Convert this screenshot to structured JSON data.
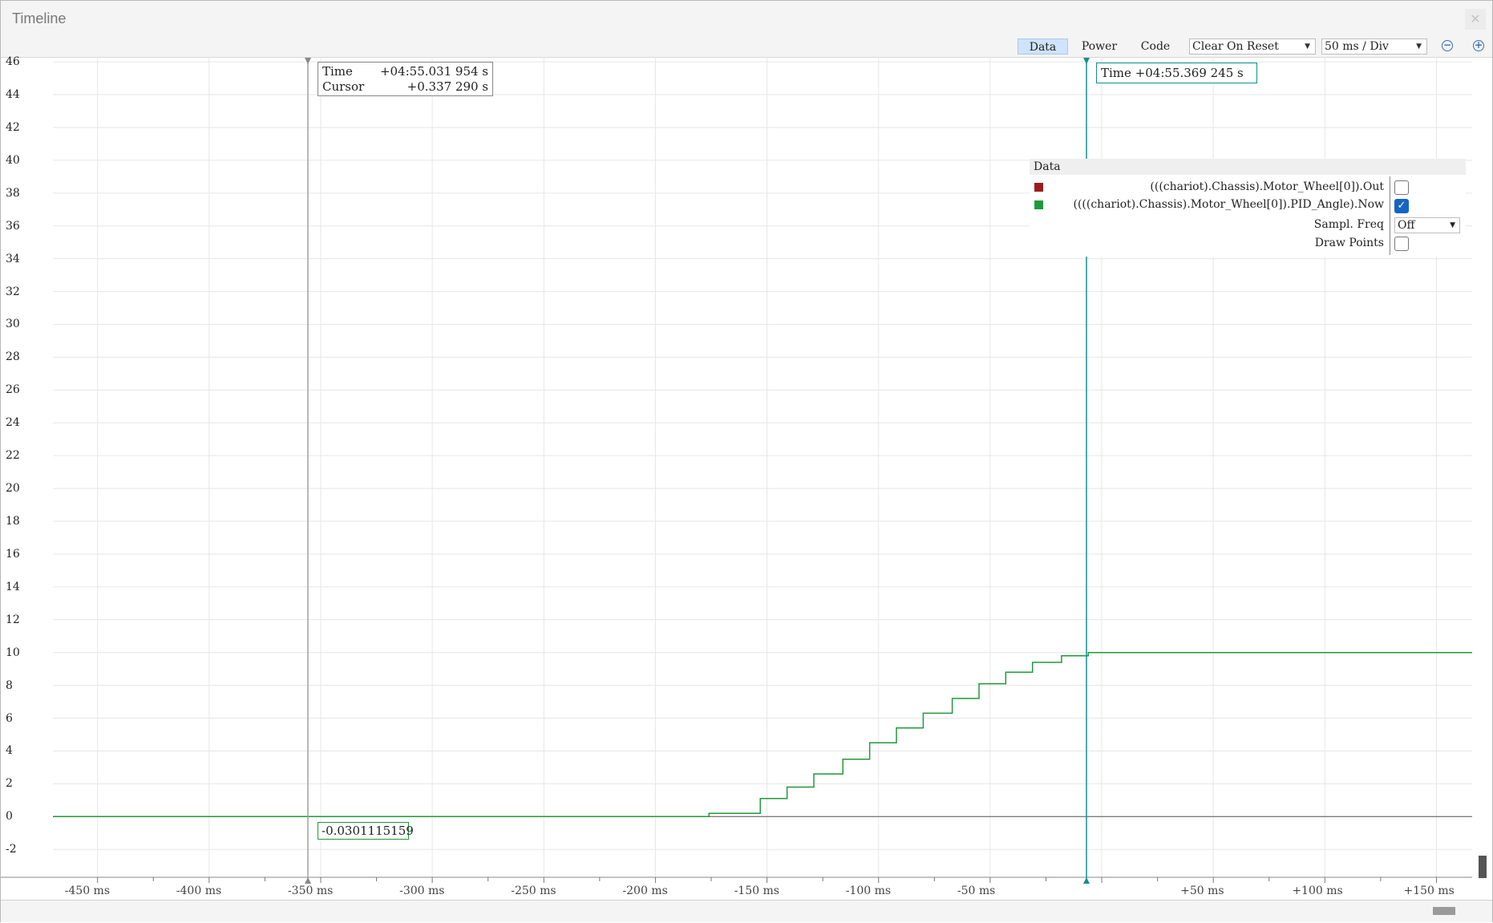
{
  "window": {
    "title": "Timeline"
  },
  "toolbar": {
    "tabs": [
      "Data",
      "Power",
      "Code"
    ],
    "active_tab": "Data",
    "reset_mode": "Clear On Reset",
    "time_scale": "50 ms / Div"
  },
  "cursor_left": {
    "time_label": "Time",
    "time_value": "+04:55.031 954 s",
    "cursor_label": "Cursor",
    "cursor_value": "+0.337 290 s",
    "value_readout": "-0.0301115159"
  },
  "cursor_right": {
    "time_label": "Time",
    "time_value": "+04:55.369 245 s"
  },
  "legend": {
    "title": "Data",
    "series": [
      {
        "label": "(((chariot).Chassis).Motor_Wheel[0]).Out",
        "color": "#9b1c1c",
        "enabled": false
      },
      {
        "label": "((((chariot).Chassis).Motor_Wheel[0]).PID_Angle).Now",
        "color": "#1f9a3a",
        "enabled": true
      }
    ],
    "sampl_freq_label": "Sampl. Freq",
    "sampl_freq_value": "Off",
    "draw_points_label": "Draw Points",
    "draw_points": false
  },
  "chart_data": {
    "type": "line",
    "y_ticks": [
      46,
      44,
      42,
      40,
      38,
      36,
      34,
      32,
      30,
      28,
      26,
      24,
      22,
      20,
      18,
      16,
      14,
      12,
      10,
      8,
      6,
      4,
      2,
      0,
      -2
    ],
    "x_tick_labels": [
      "-450 ms",
      "-400 ms",
      "-350 ms",
      "-300 ms",
      "-250 ms",
      "-200 ms",
      "-150 ms",
      "-100 ms",
      "-50 ms",
      "+50 ms",
      "+100 ms",
      "+150 ms"
    ],
    "x_tick_values": [
      -450,
      -400,
      -350,
      -300,
      -250,
      -200,
      -150,
      -100,
      -50,
      50,
      100,
      150
    ],
    "xlim": [
      -470,
      166
    ],
    "ylim": [
      -3.7,
      46.3
    ],
    "series": [
      {
        "color": "#1f9a3a",
        "step_points": [
          [
            -470,
            0
          ],
          [
            -176,
            0
          ],
          [
            -176,
            0.2
          ],
          [
            -153,
            0.2
          ],
          [
            -153,
            1.1
          ],
          [
            -141,
            1.1
          ],
          [
            -141,
            1.8
          ],
          [
            -129,
            1.8
          ],
          [
            -129,
            2.6
          ],
          [
            -116,
            2.6
          ],
          [
            -116,
            3.5
          ],
          [
            -104,
            3.5
          ],
          [
            -104,
            4.5
          ],
          [
            -92,
            4.5
          ],
          [
            -92,
            5.4
          ],
          [
            -80,
            5.4
          ],
          [
            -80,
            6.3
          ],
          [
            -67,
            6.3
          ],
          [
            -67,
            7.2
          ],
          [
            -55,
            7.2
          ],
          [
            -55,
            8.1
          ],
          [
            -43,
            8.1
          ],
          [
            -43,
            8.8
          ],
          [
            -31,
            8.8
          ],
          [
            -31,
            9.4
          ],
          [
            -18,
            9.4
          ],
          [
            -18,
            9.8
          ],
          [
            -6,
            9.8
          ],
          [
            -6,
            10.0
          ],
          [
            166,
            10.0
          ]
        ]
      }
    ]
  }
}
